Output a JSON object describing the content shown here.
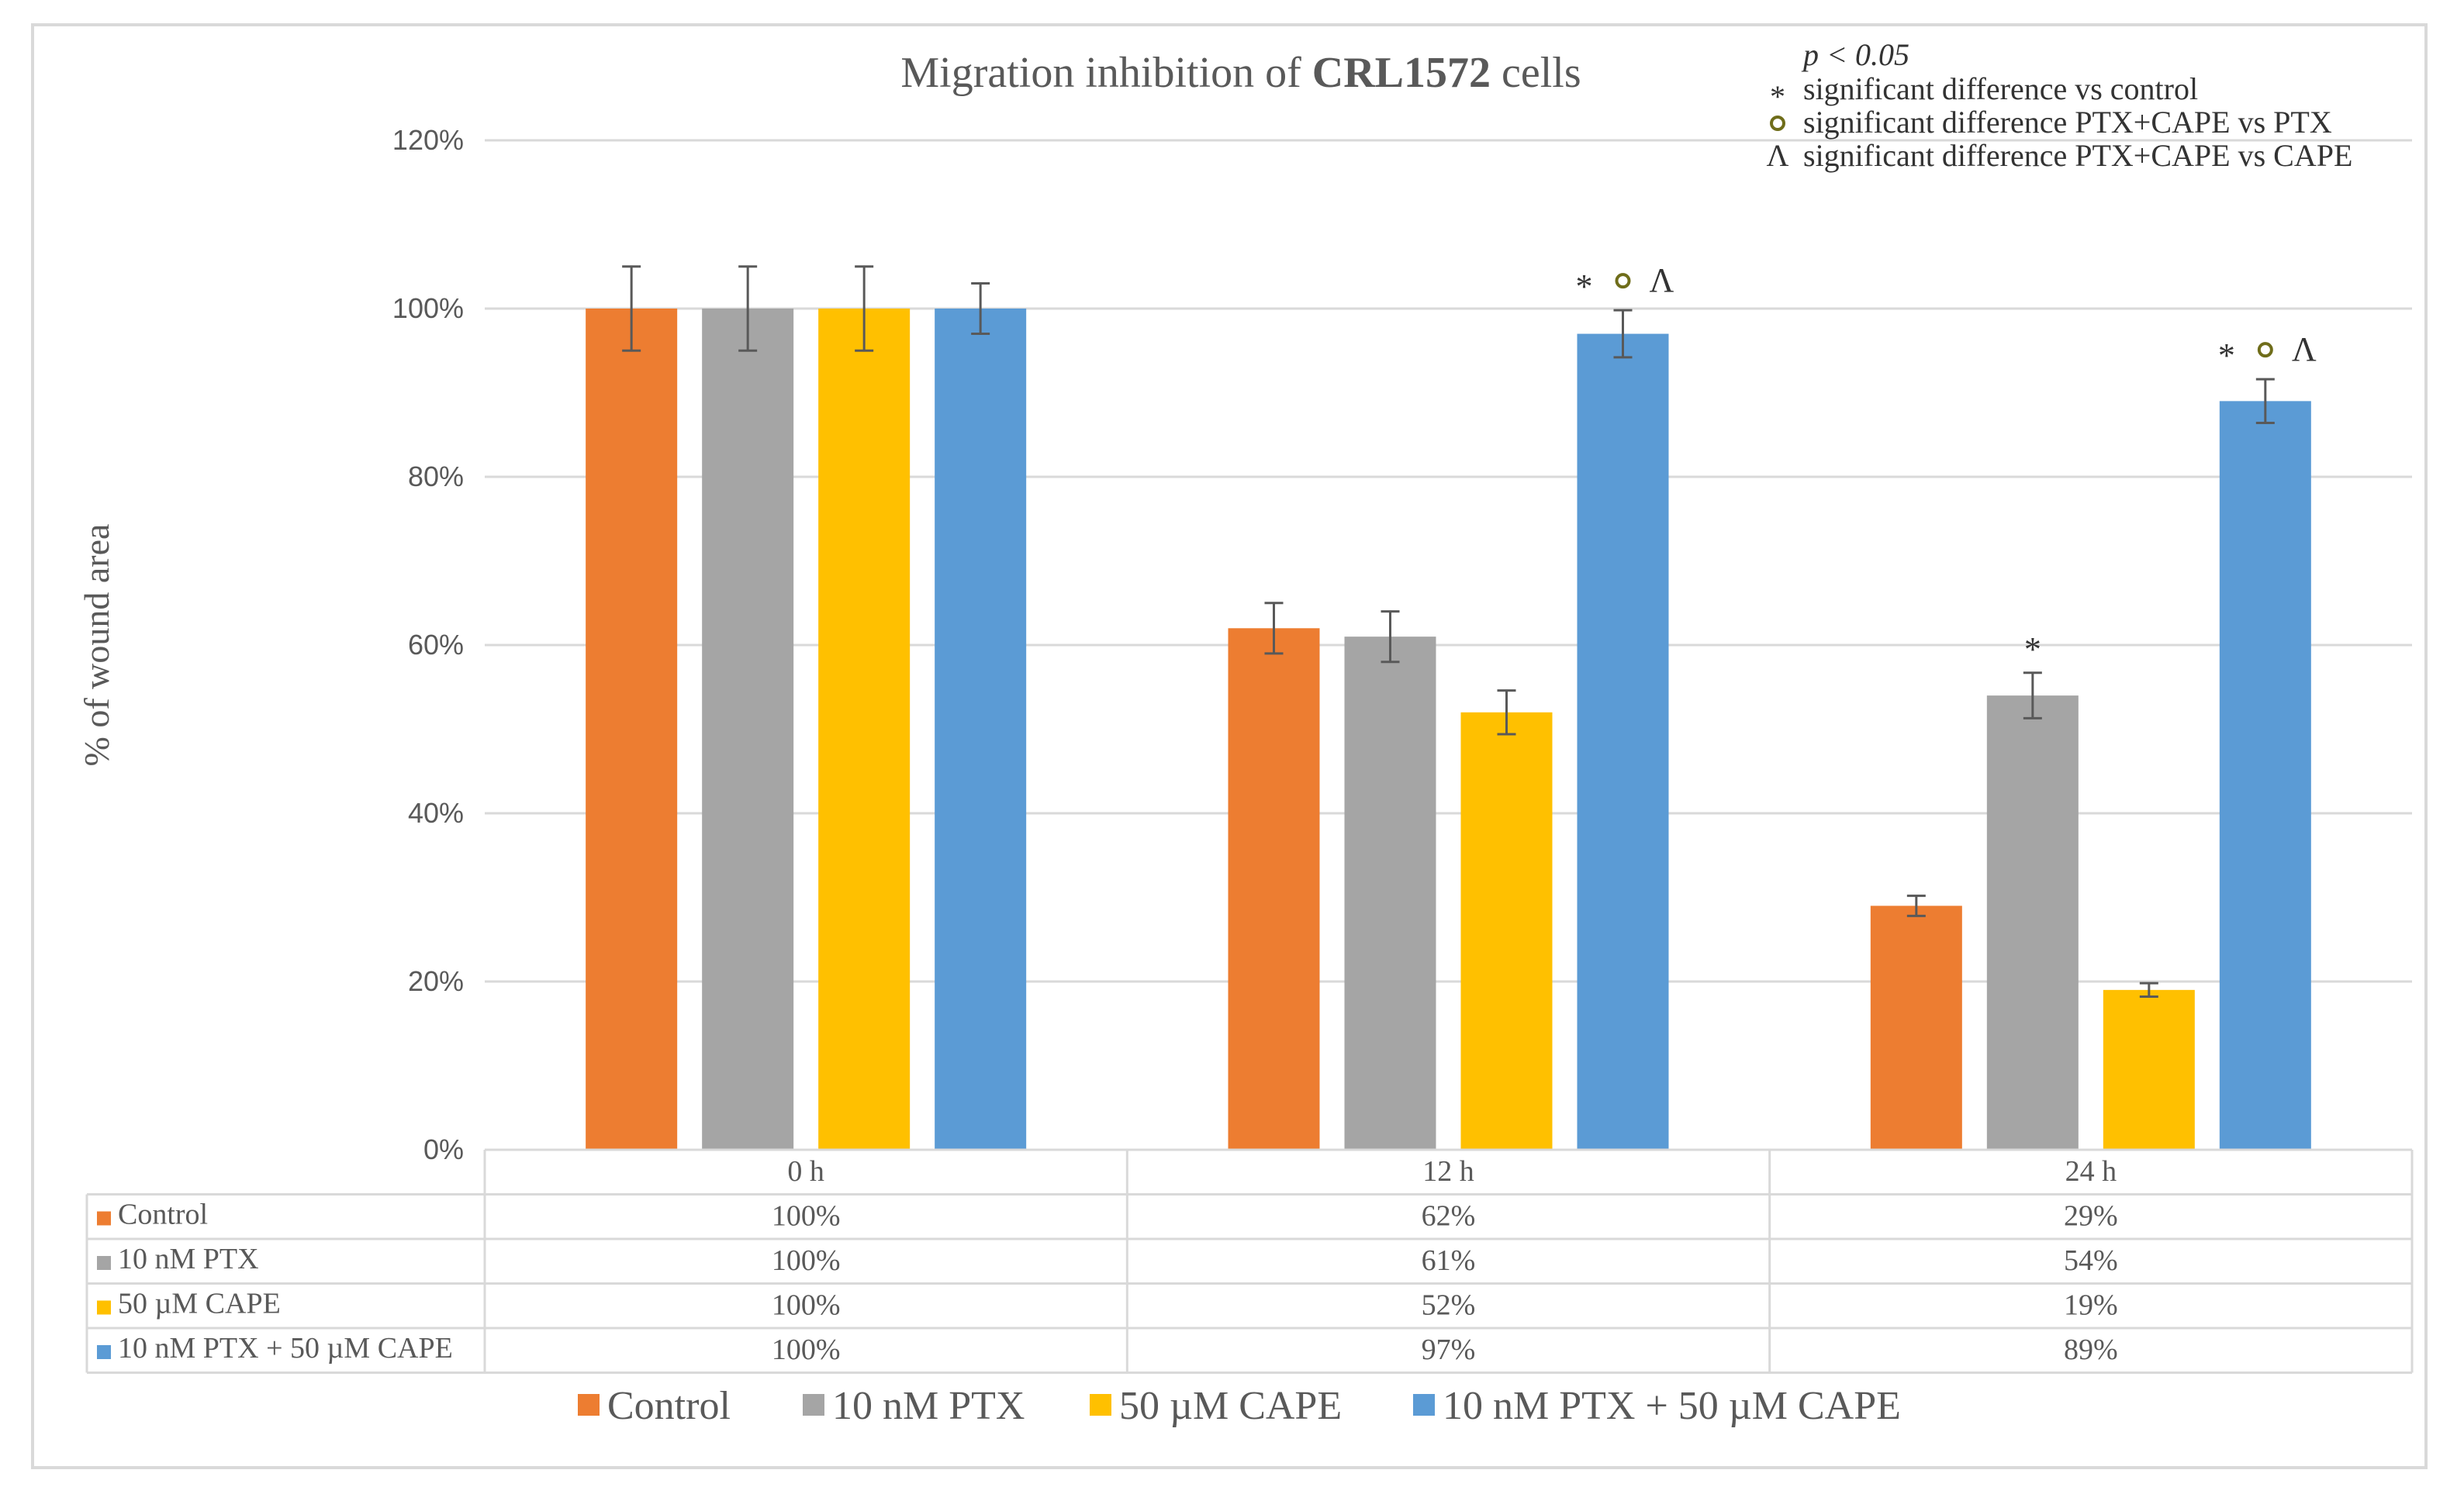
{
  "chart_data": {
    "type": "bar",
    "title": {
      "prefix": "Migration inhibition of ",
      "bold": "CRL1572",
      "suffix": " cells"
    },
    "ylabel": "% of wound area",
    "xlabel": "",
    "ylim": [
      0,
      120
    ],
    "yticks": [
      "0%",
      "20%",
      "40%",
      "60%",
      "80%",
      "100%",
      "120%"
    ],
    "categories": [
      "0 h",
      "12 h",
      "24 h"
    ],
    "series": [
      {
        "name": "Control",
        "color": "#ED7D31",
        "values": [
          100,
          62,
          29
        ],
        "errors": [
          5,
          3,
          1.2
        ],
        "labels": [
          "100%",
          "62%",
          "29%"
        ]
      },
      {
        "name": "10 nM PTX",
        "color": "#A5A5A5",
        "values": [
          100,
          61,
          54
        ],
        "errors": [
          5,
          3,
          2.7
        ],
        "labels": [
          "100%",
          "61%",
          "54%"
        ]
      },
      {
        "name": "50 µM CAPE",
        "color": "#FFC000",
        "values": [
          100,
          52,
          19
        ],
        "errors": [
          5,
          2.6,
          0.8
        ],
        "labels": [
          "100%",
          "52%",
          "19%"
        ]
      },
      {
        "name": "10 nM PTX + 50 µM CAPE",
        "color": "#5B9BD5",
        "values": [
          100,
          97,
          89
        ],
        "errors": [
          3,
          2.8,
          2.6
        ],
        "labels": [
          "100%",
          "97%",
          "89%"
        ]
      }
    ],
    "annotations": [
      {
        "series": 3,
        "category": 1,
        "marks": [
          "*",
          "o",
          "^"
        ]
      },
      {
        "series": 1,
        "category": 2,
        "marks": [
          "*"
        ]
      },
      {
        "series": 3,
        "category": 2,
        "marks": [
          "*",
          "o",
          "^"
        ]
      }
    ],
    "significance_note": {
      "title": "p < 0.05",
      "items": [
        {
          "symbol": "*",
          "text": "significant difference vs control"
        },
        {
          "symbol": "o",
          "text": "significant difference PTX+CAPE vs PTX"
        },
        {
          "symbol": "^",
          "text": "significant difference PTX+CAPE vs CAPE"
        }
      ]
    },
    "grid": true,
    "legend": "bottom",
    "data_table": true
  }
}
